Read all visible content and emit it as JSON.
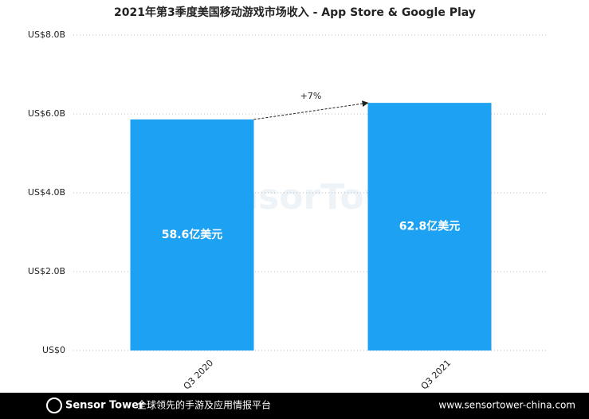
{
  "chart_data": {
    "type": "bar",
    "title": "2021年第3季度美国移动游戏市场收入 - App Store & Google Play",
    "categories": [
      "Q3 2020",
      "Q3 2021"
    ],
    "values": [
      5.86,
      6.28
    ],
    "value_labels": [
      "58.6亿美元",
      "62.8亿美元"
    ],
    "color": "#1da1f2",
    "ylim": [
      0,
      8
    ],
    "yticks": [
      {
        "value": 0,
        "label": "US$0"
      },
      {
        "value": 2,
        "label": "US$2.0B"
      },
      {
        "value": 4,
        "label": "US$4.0B"
      },
      {
        "value": 6,
        "label": "US$6.0B"
      },
      {
        "value": 8,
        "label": "US$8.0B"
      }
    ],
    "grid": true,
    "annotation": "+7%",
    "watermark": "SensorTower"
  },
  "footer": {
    "brand": "Sensor Tower",
    "tagline": "全球领先的手游及应用情报平台",
    "url": "www.sensortower-china.com"
  }
}
